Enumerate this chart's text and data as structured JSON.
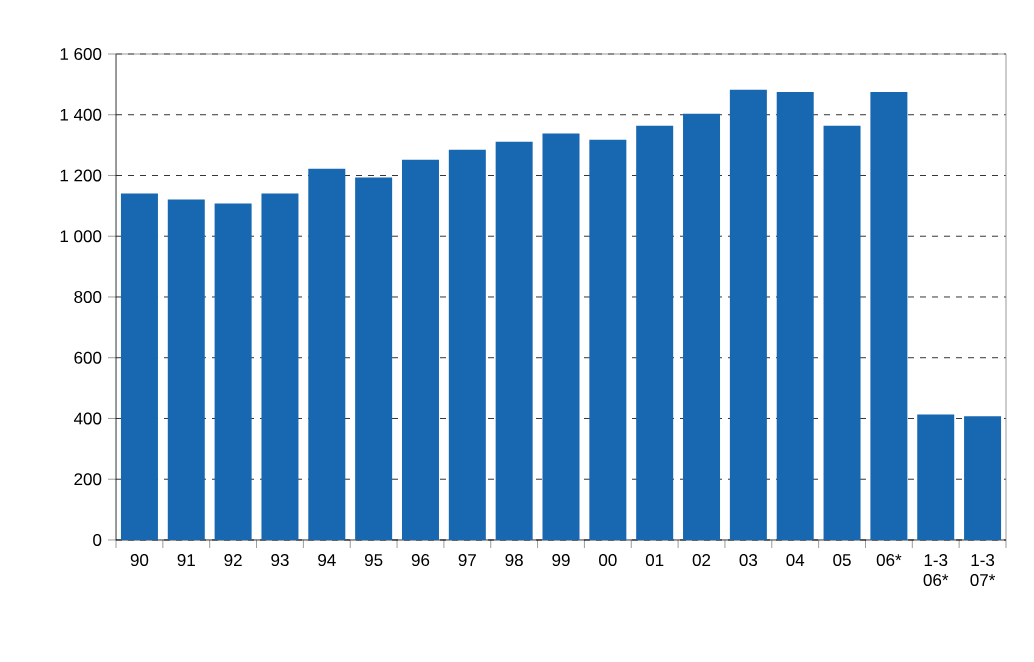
{
  "chart_data": {
    "type": "bar",
    "categories": [
      "90",
      "91",
      "92",
      "93",
      "94",
      "95",
      "96",
      "97",
      "98",
      "99",
      "00",
      "01",
      "02",
      "03",
      "04",
      "05",
      "06*",
      "1-3 06*",
      "1-3 07*"
    ],
    "values": [
      1141,
      1121,
      1108,
      1141,
      1222,
      1193,
      1252,
      1285,
      1311,
      1338,
      1318,
      1364,
      1403,
      1482,
      1475,
      1364,
      1475,
      413,
      407
    ],
    "color": "#1767b1",
    "ylim": [
      0,
      1600
    ],
    "yticks": [
      0,
      200,
      400,
      600,
      800,
      {
        "value": 1000,
        "label": "1 000"
      },
      {
        "value": 1200,
        "label": "1 200"
      },
      {
        "value": 1400,
        "label": "1 400"
      },
      {
        "value": 1600,
        "label": "1 600"
      }
    ],
    "grid": "y"
  }
}
